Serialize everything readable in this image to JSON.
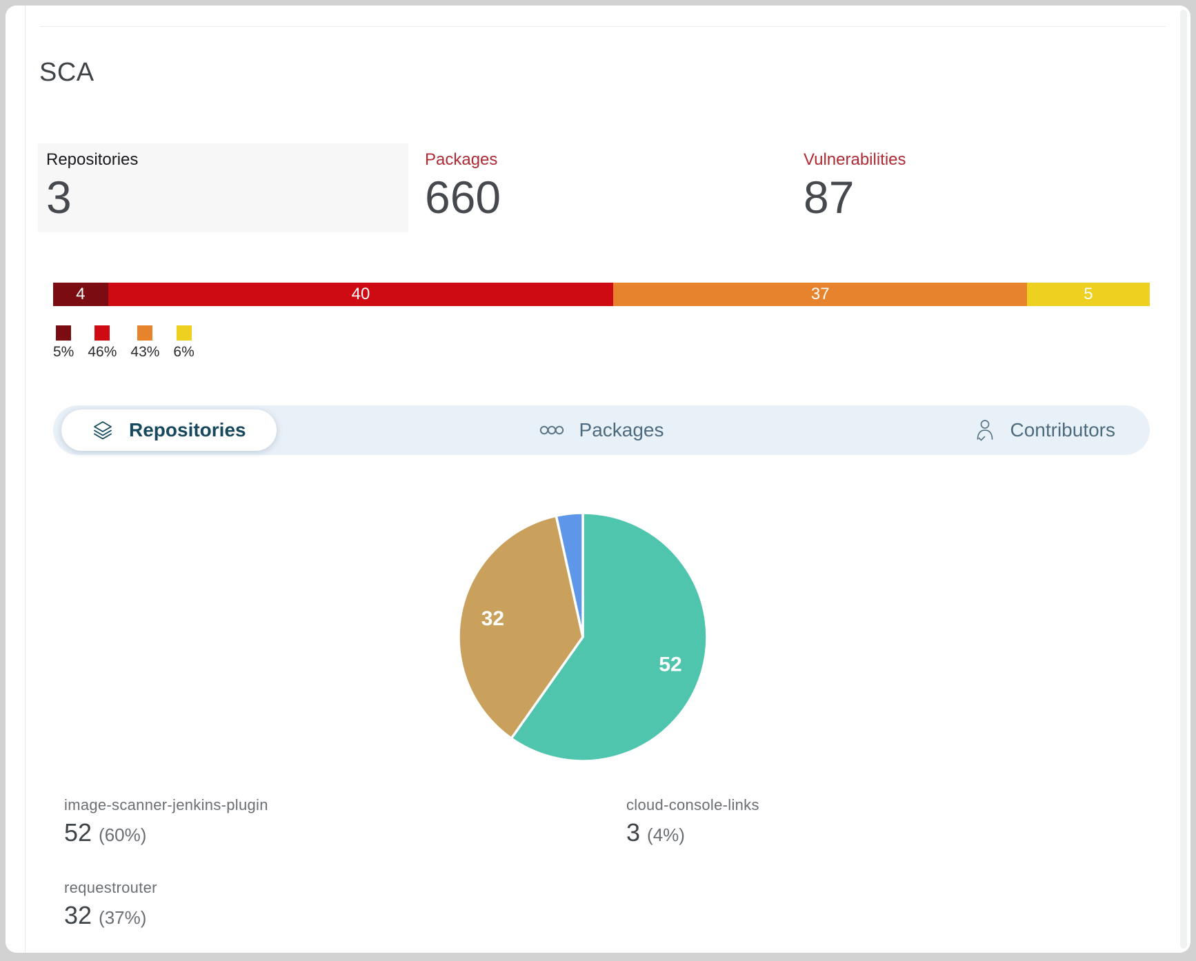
{
  "page": {
    "title": "SCA"
  },
  "stats": [
    {
      "label": "Repositories",
      "value": "3",
      "selected": true
    },
    {
      "label": "Packages",
      "value": "660",
      "selected": false
    },
    {
      "label": "Vulnerabilities",
      "value": "87",
      "selected": false
    }
  ],
  "tabs": [
    {
      "label": "Repositories",
      "icon": "layers-icon",
      "active": true
    },
    {
      "label": "Packages",
      "icon": "three-circles-icon",
      "active": false
    },
    {
      "label": "Contributors",
      "icon": "person-check-icon",
      "active": false
    }
  ],
  "chart_data": [
    {
      "type": "bar",
      "subtype": "stacked-horizontal-severity",
      "segments": [
        {
          "value": 4,
          "legend_pct": "5%",
          "color": "#7b0c11"
        },
        {
          "value": 40,
          "legend_pct": "46%",
          "color": "#ce0b13"
        },
        {
          "value": 37,
          "legend_pct": "43%",
          "color": "#e8832d"
        },
        {
          "value": 5,
          "legend_pct": "6%",
          "color": "#eed021"
        }
      ],
      "display_widths_pct": [
        5.0,
        46.1,
        37.7,
        11.2
      ],
      "value_labels_shown": true,
      "legend_position": "bottom-left"
    },
    {
      "type": "pie",
      "total": 87,
      "start_angle_deg": 0,
      "direction": "clockwise",
      "label_color": "#ffffff",
      "slices": [
        {
          "label": "image-scanner-jenkins-plugin",
          "value": 52,
          "pct": "60%",
          "color": "#4fc5ae",
          "value_label_shown": true
        },
        {
          "label": "requestrouter",
          "value": 32,
          "pct": "37%",
          "color": "#c9a05c",
          "value_label_shown": true
        },
        {
          "label": "cloud-console-links",
          "value": 3,
          "pct": "4%",
          "color": "#5e97ea",
          "value_label_shown": false
        }
      ]
    }
  ],
  "repo_stats": [
    {
      "name": "image-scanner-jenkins-plugin",
      "value": "52",
      "pct": "(60%)"
    },
    {
      "name": "cloud-console-links",
      "value": "3",
      "pct": "(4%)"
    },
    {
      "name": "requestrouter",
      "value": "32",
      "pct": "(37%)"
    }
  ],
  "colors": {
    "stat_label_red": "#b02a33",
    "tab_bar_bg": "#e9f1f8",
    "tab_active_text": "#16495d",
    "tab_inactive_text": "#4d6b7e",
    "panel_bg": "#ffffff",
    "outer_bg": "#d2d2d2"
  }
}
